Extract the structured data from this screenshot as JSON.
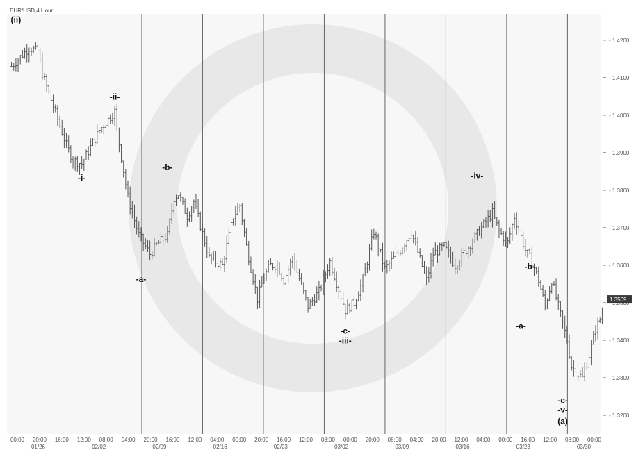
{
  "chart_data": {
    "type": "ohlc",
    "title": "EUR/USD,4 Hour",
    "ylim": [
      1.315,
      1.427
    ],
    "y_ticks": [
      "1.4200",
      "1.4100",
      "1.4000",
      "1.3900",
      "1.3800",
      "1.3700",
      "1.3600",
      "1.3500",
      "1.3400",
      "1.3300",
      "1.3200"
    ],
    "last_price": "1.3509",
    "x_time_labels": [
      "00:00",
      "20:00",
      "16:00",
      "12:00",
      "08:00",
      "04:00",
      "20:00",
      "16:00",
      "12:00",
      "04:00",
      "00:00",
      "20:00",
      "16:00",
      "12:00",
      "08:00",
      "00:00",
      "20:00",
      "08:00",
      "04:00",
      "20:00",
      "12:00",
      "04:00",
      "00:00",
      "16:00",
      "12:00",
      "08:00",
      "00:00"
    ],
    "x_date_labels": [
      "01/26",
      "02/02",
      "02/09",
      "02/16",
      "02/23",
      "03/02",
      "03/09",
      "03/16",
      "03/23",
      "03/30"
    ],
    "bar_count": 270,
    "price_path": [
      [
        0,
        1.413
      ],
      [
        8,
        1.418
      ],
      [
        12,
        1.417
      ],
      [
        14,
        1.411
      ],
      [
        25,
        1.392
      ],
      [
        28,
        1.388
      ],
      [
        32,
        1.387
      ],
      [
        40,
        1.396
      ],
      [
        47,
        1.401
      ],
      [
        48,
        1.396
      ],
      [
        53,
        1.378
      ],
      [
        58,
        1.368
      ],
      [
        63,
        1.363
      ],
      [
        67,
        1.366
      ],
      [
        71,
        1.368
      ],
      [
        74,
        1.378
      ],
      [
        76,
        1.379
      ],
      [
        80,
        1.373
      ],
      [
        83,
        1.377
      ],
      [
        90,
        1.362
      ],
      [
        96,
        1.36
      ],
      [
        101,
        1.373
      ],
      [
        104,
        1.376
      ],
      [
        107,
        1.365
      ],
      [
        112,
        1.351
      ],
      [
        115,
        1.357
      ],
      [
        118,
        1.36
      ],
      [
        121,
        1.36
      ],
      [
        124,
        1.356
      ],
      [
        128,
        1.362
      ],
      [
        135,
        1.349
      ],
      [
        140,
        1.353
      ],
      [
        145,
        1.361
      ],
      [
        152,
        1.348
      ],
      [
        156,
        1.35
      ],
      [
        160,
        1.356
      ],
      [
        165,
        1.369
      ],
      [
        170,
        1.359
      ],
      [
        177,
        1.364
      ],
      [
        182,
        1.369
      ],
      [
        189,
        1.356
      ],
      [
        192,
        1.363
      ],
      [
        197,
        1.365
      ],
      [
        202,
        1.36
      ],
      [
        207,
        1.364
      ],
      [
        214,
        1.37
      ],
      [
        219,
        1.374
      ],
      [
        222,
        1.369
      ],
      [
        226,
        1.366
      ],
      [
        229,
        1.373
      ],
      [
        234,
        1.364
      ],
      [
        237,
        1.361
      ],
      [
        240,
        1.356
      ],
      [
        243,
        1.349
      ],
      [
        246,
        1.356
      ],
      [
        249,
        1.349
      ],
      [
        253,
        1.34
      ],
      [
        255,
        1.333
      ],
      [
        258,
        1.331
      ],
      [
        260,
        1.33
      ],
      [
        263,
        1.336
      ],
      [
        266,
        1.343
      ],
      [
        269,
        1.347
      ],
      [
        271,
        1.352
      ],
      [
        274,
        1.346
      ],
      [
        277,
        1.343
      ],
      [
        279,
        1.351
      ],
      [
        281,
        1.352
      ]
    ],
    "wave_labels": [
      {
        "text": "(ii)",
        "bar": 2,
        "price": 1.4228,
        "pos": "above"
      },
      {
        "text": "-ii-",
        "bar": 47,
        "price": 1.4023,
        "pos": "above"
      },
      {
        "text": "-i-",
        "bar": 32,
        "price": 1.3855,
        "pos": "below"
      },
      {
        "text": "-b-",
        "bar": 71,
        "price": 1.3835,
        "pos": "above"
      },
      {
        "text": "-a-",
        "bar": 59,
        "price": 1.3585,
        "pos": "below"
      },
      {
        "text": "-c-",
        "bar": 152,
        "price": 1.3447,
        "pos": "below"
      },
      {
        "text": "-iii-",
        "bar": 152,
        "price": 1.3447,
        "pos": "below2"
      },
      {
        "text": "-iv-",
        "bar": 212,
        "price": 1.3812,
        "pos": "above"
      },
      {
        "text": "-b-",
        "bar": 236,
        "price": 1.357,
        "pos": "above"
      },
      {
        "text": "-a-",
        "bar": 232,
        "price": 1.346,
        "pos": "below"
      },
      {
        "text": "-c-",
        "bar": 251,
        "price": 1.3262,
        "pos": "below"
      },
      {
        "text": "-v-",
        "bar": 251,
        "price": 1.3262,
        "pos": "below2"
      },
      {
        "text": "(a)",
        "bar": 251,
        "price": 1.3262,
        "pos": "below3"
      }
    ]
  }
}
